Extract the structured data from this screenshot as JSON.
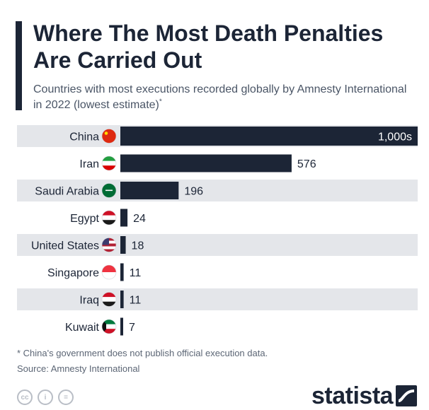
{
  "header": {
    "title": "Where The Most Death Penalties Are Carried Out",
    "subtitle": "Countries with most executions recorded globally by Amnesty International in 2022 (lowest estimate)",
    "subtitle_marker": "*"
  },
  "chart_data": {
    "type": "bar",
    "orientation": "horizontal",
    "categories": [
      "China",
      "Iran",
      "Saudi Arabia",
      "Egypt",
      "United States",
      "Singapore",
      "Iraq",
      "Kuwait"
    ],
    "values": [
      1000,
      576,
      196,
      24,
      18,
      11,
      11,
      7
    ],
    "value_labels": [
      "1,000s",
      "576",
      "196",
      "24",
      "18",
      "11",
      "11",
      "7"
    ],
    "flags": [
      "flag-china-icon",
      "flag-iran-icon",
      "flag-saudi-arabia-icon",
      "flag-egypt-icon",
      "flag-united-states-icon",
      "flag-singapore-icon",
      "flag-iraq-icon",
      "flag-kuwait-icon"
    ],
    "bar_color": "#1c2536",
    "row_band_color": "#e4e6ea",
    "xlim": [
      0,
      1000
    ],
    "grid": false
  },
  "footer": {
    "footnote": "* China's government does not publish official execution data.",
    "source": "Source: Amnesty International",
    "license_icons": [
      "creative-commons-icon",
      "attribution-icon",
      "no-derivatives-icon"
    ],
    "license_glyphs": [
      "cc",
      "i",
      "="
    ],
    "brand": "statista"
  }
}
